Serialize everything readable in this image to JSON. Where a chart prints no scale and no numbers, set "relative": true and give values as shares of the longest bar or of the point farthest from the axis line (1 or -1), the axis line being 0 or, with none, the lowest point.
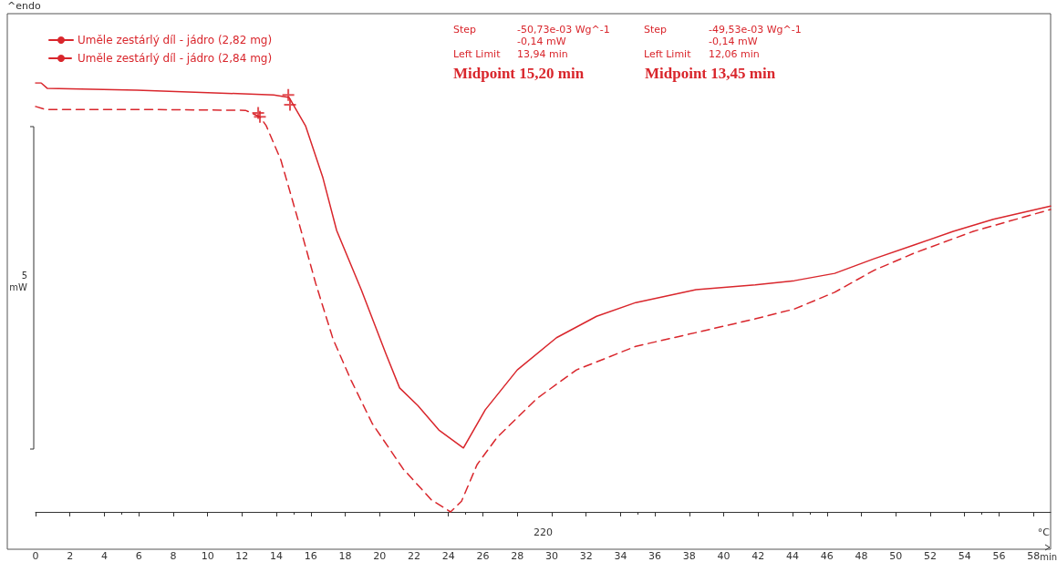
{
  "chart_data": {
    "type": "line",
    "relative": true,
    "xlabel": "min",
    "ylabel": "5 mW",
    "x2label": "°C",
    "xlim": [
      0,
      59
    ],
    "xticks": [
      0,
      2,
      4,
      6,
      8,
      10,
      12,
      14,
      16,
      18,
      20,
      22,
      24,
      26,
      28,
      30,
      32,
      34,
      36,
      38,
      40,
      42,
      44,
      46,
      48,
      50,
      52,
      54,
      56,
      58
    ],
    "tick_labels": "x",
    "grid": false,
    "legend": "top left",
    "marker": "none",
    "annotations": [
      "^endo",
      "Step",
      "-50,73e-03 Wg^-1",
      "-0,14 mW",
      "Left Limit",
      "13,94 min",
      "Midpoint 15,20 min",
      "Step",
      "-49,53e-03 Wg^-1",
      "-0,14 mW",
      "Left Limit",
      "12,06 min",
      "Midpoint 13,45 min",
      "220"
    ],
    "series": [
      {
        "name": "Uměle zestárlý díl - jádro (2,82 mg)",
        "color": "#d9262c",
        "line_style": "solid",
        "x": [
          0,
          0.32,
          0.69,
          5.89,
          13.84,
          14.74,
          15.69,
          16.7,
          17.5,
          18.93,
          20.36,
          21.16,
          22.22,
          23.44,
          24.87,
          26.14,
          28.0,
          30.28,
          32.61,
          34.89,
          38.39,
          41.83,
          44.11,
          46.45,
          48.73,
          51.06,
          53.34,
          55.67,
          59.0
        ],
        "values": [
          1.0,
          1.0,
          0.987,
          0.983,
          0.972,
          0.966,
          0.9,
          0.779,
          0.656,
          0.518,
          0.369,
          0.289,
          0.248,
          0.191,
          0.149,
          0.238,
          0.331,
          0.406,
          0.456,
          0.488,
          0.518,
          0.529,
          0.539,
          0.556,
          0.59,
          0.622,
          0.654,
          0.682,
          0.713
        ]
      },
      {
        "name": "Uměle zestárlý díl - jádro (2,84 mg)",
        "color": "#d9262c",
        "line_style": "dashed",
        "x": [
          0,
          0.58,
          6.1,
          12.2,
          13.04,
          13.41,
          14.26,
          15.27,
          16.28,
          17.29,
          18.35,
          19.57,
          21.37,
          23.01,
          24.12,
          24.76,
          25.66,
          26.83,
          29.16,
          31.44,
          34.89,
          38.39,
          41.83,
          44.11,
          46.45,
          48.73,
          51.06,
          54.51,
          59.0
        ],
        "values": [
          0.945,
          0.938,
          0.938,
          0.936,
          0.921,
          0.9,
          0.82,
          0.679,
          0.533,
          0.403,
          0.306,
          0.206,
          0.1,
          0.028,
          0,
          0.025,
          0.11,
          0.174,
          0.265,
          0.331,
          0.386,
          0.418,
          0.45,
          0.473,
          0.512,
          0.563,
          0.603,
          0.654,
          0.705
        ]
      },
      {
        "type": "scatter",
        "marker": "cross",
        "color": "#d9262c",
        "x": [
          14.69,
          14.79
        ],
        "values": [
          0.972,
          0.949
        ]
      },
      {
        "type": "scatter",
        "marker": "cross",
        "color": "#d9262c",
        "x": [
          12.94,
          13.04
        ],
        "values": [
          0.93,
          0.921
        ]
      }
    ]
  }
}
